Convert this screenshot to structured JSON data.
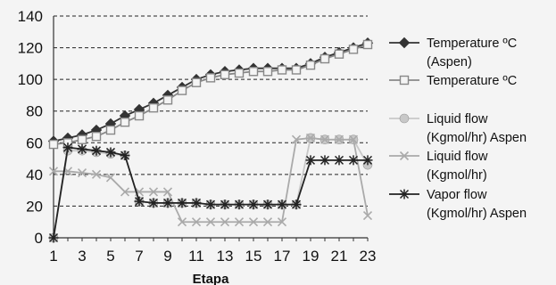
{
  "chart_data": {
    "type": "line",
    "xlabel": "Etapa",
    "ylabel": "",
    "ylim": [
      0,
      140
    ],
    "yticks": [
      0,
      20,
      40,
      60,
      80,
      100,
      120,
      140
    ],
    "x": [
      1,
      2,
      3,
      4,
      5,
      6,
      7,
      8,
      9,
      10,
      11,
      12,
      13,
      14,
      15,
      16,
      17,
      18,
      19,
      20,
      21,
      22,
      23
    ],
    "xtick_labels": [
      1,
      3,
      5,
      7,
      9,
      11,
      13,
      15,
      17,
      19,
      21,
      23
    ],
    "grid": "horizontal dashed",
    "legend_position": "right",
    "series": [
      {
        "name": "Temperature ºC (Aspen)",
        "legend_lines": [
          "Temperature ºC",
          "(Aspen)"
        ],
        "color": "#333333",
        "marker": "filled-diamond",
        "values": [
          61,
          63,
          65,
          68,
          72,
          77,
          81,
          85,
          90,
          95,
          100,
          103,
          105,
          106,
          107,
          107,
          107,
          107,
          110,
          114,
          117,
          120,
          123
        ]
      },
      {
        "name": "Temperature ºC",
        "legend_lines": [
          "Temperature ºC"
        ],
        "color": "#888888",
        "marker": "open-square",
        "values": [
          59,
          60,
          62,
          64,
          68,
          73,
          77,
          82,
          87,
          93,
          98,
          101,
          103,
          104,
          105,
          105,
          106,
          106,
          109,
          113,
          116,
          119,
          122
        ]
      },
      {
        "name": "Liquid flow (Kgmol/hr) Aspen",
        "legend_lines": [
          "Liquid flow",
          "(Kgmol/hr) Aspen"
        ],
        "color": "#c8c8c8",
        "marker": "filled-circle",
        "values": [
          0,
          55,
          55,
          54,
          53,
          52,
          23,
          22,
          22,
          22,
          22,
          21,
          21,
          21,
          21,
          21,
          21,
          21,
          63,
          62,
          62,
          62,
          46
        ]
      },
      {
        "name": "Liquid flow (Kgmol/hr)",
        "legend_lines": [
          "Liquid flow",
          "(Kgmol/hr)"
        ],
        "color": "#aaaaaa",
        "marker": "x",
        "values": [
          42,
          42,
          41,
          40,
          38,
          29,
          29,
          29,
          29,
          10,
          10,
          10,
          10,
          10,
          10,
          10,
          10,
          62,
          63,
          62,
          62,
          62,
          14
        ]
      },
      {
        "name": "Vapor flow (Kgmol/hr) Aspen",
        "legend_lines": [
          "Vapor flow",
          "(Kgmol/hr) Aspen"
        ],
        "color": "#222222",
        "marker": "asterisk",
        "values": [
          0,
          57,
          56,
          55,
          54,
          52,
          23,
          22,
          22,
          22,
          22,
          21,
          21,
          21,
          21,
          21,
          21,
          21,
          49,
          49,
          49,
          49,
          49
        ]
      }
    ]
  }
}
